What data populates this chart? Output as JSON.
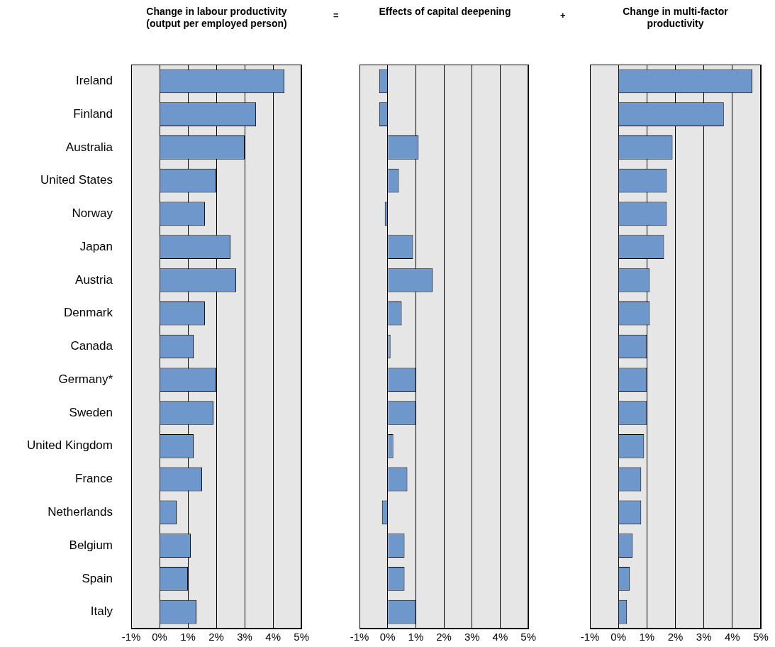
{
  "chart_data": [
    {
      "type": "bar",
      "orientation": "horizontal",
      "title": "Change in labour productivity (output per employed person)",
      "annotations": [
        "="
      ],
      "categories": [
        "Ireland",
        "Finland",
        "Australia",
        "United States",
        "Norway",
        "Japan",
        "Austria",
        "Denmark",
        "Canada",
        "Germany*",
        "Sweden",
        "United Kingdom",
        "France",
        "Netherlands",
        "Belgium",
        "Spain",
        "Italy"
      ],
      "values": [
        4.4,
        3.4,
        3.0,
        2.0,
        1.6,
        2.5,
        2.7,
        1.6,
        1.2,
        2.0,
        1.9,
        1.2,
        1.5,
        0.6,
        1.1,
        1.0,
        1.3
      ],
      "color": "#6e98cc",
      "xlim": [
        -1,
        5
      ],
      "xticks": [
        {
          "value": -1,
          "label": "-1%"
        },
        {
          "value": 0,
          "label": "0%"
        },
        {
          "value": 1,
          "label": "1%"
        },
        {
          "value": 2,
          "label": "2%"
        },
        {
          "value": 3,
          "label": "3%"
        },
        {
          "value": 4,
          "label": "4%"
        },
        {
          "value": 5,
          "label": "5%"
        }
      ],
      "grid": "x"
    },
    {
      "type": "bar",
      "orientation": "horizontal",
      "title": "Effects of capital deepening",
      "annotations": [
        "+"
      ],
      "tick_labels": "x",
      "categories": [
        null,
        null,
        null,
        null,
        null,
        null,
        null,
        null,
        null,
        null,
        null,
        null,
        null,
        null,
        null,
        null,
        null
      ],
      "values": [
        -0.3,
        -0.3,
        1.1,
        0.4,
        -0.1,
        0.9,
        1.6,
        0.5,
        0.1,
        1.0,
        1.0,
        0.2,
        0.7,
        -0.2,
        0.6,
        0.6,
        1.0
      ],
      "color": "#6e98cc",
      "xlim": [
        -1,
        5
      ],
      "xticks": [
        {
          "value": -1,
          "label": "-1%"
        },
        {
          "value": 0,
          "label": "0%"
        },
        {
          "value": 1,
          "label": "1%"
        },
        {
          "value": 2,
          "label": "2%"
        },
        {
          "value": 3,
          "label": "3%"
        },
        {
          "value": 4,
          "label": "4%"
        },
        {
          "value": 5,
          "label": "5%"
        }
      ],
      "grid": "x"
    },
    {
      "type": "bar",
      "orientation": "horizontal",
      "title": "Change in multi-factor productivity",
      "tick_labels": "x",
      "categories": [
        null,
        null,
        null,
        null,
        null,
        null,
        null,
        null,
        null,
        null,
        null,
        null,
        null,
        null,
        null,
        null,
        null
      ],
      "values": [
        4.7,
        3.7,
        1.9,
        1.7,
        1.7,
        1.6,
        1.1,
        1.1,
        1.0,
        1.0,
        1.0,
        0.9,
        0.8,
        0.8,
        0.5,
        0.4,
        0.3
      ],
      "color": "#6e98cc",
      "xlim": [
        -1,
        5
      ],
      "xticks": [
        {
          "value": -1,
          "label": "-1%"
        },
        {
          "value": 0,
          "label": "0%"
        },
        {
          "value": 1,
          "label": "1%"
        },
        {
          "value": 2,
          "label": "2%"
        },
        {
          "value": 3,
          "label": "3%"
        },
        {
          "value": 4,
          "label": "4%"
        },
        {
          "value": 5,
          "label": "5%"
        }
      ],
      "grid": "x"
    }
  ]
}
